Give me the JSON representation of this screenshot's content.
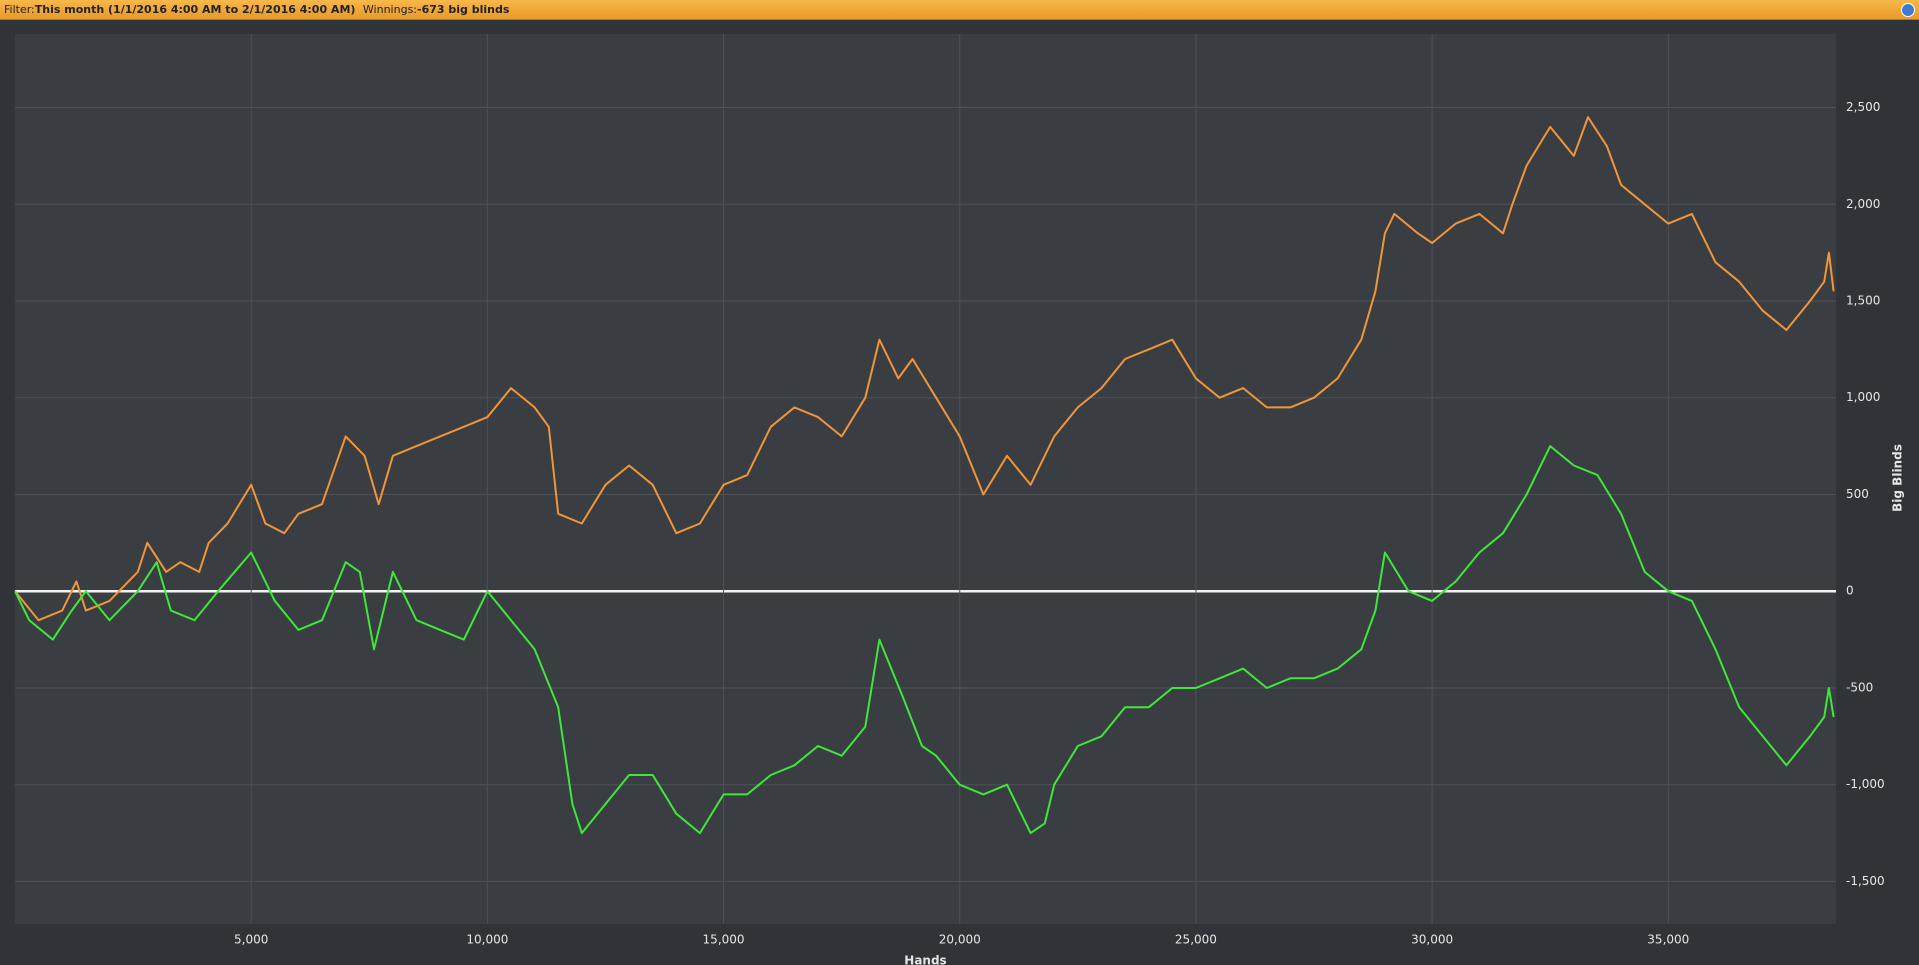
{
  "header": {
    "filter_label": "Filter:",
    "filter": "This month (1/1/2016 4:00 AM to 2/1/2016 4:00 AM)",
    "winnings_label": "Winnings:",
    "winnings": "-673 big blinds"
  },
  "chart_data": {
    "type": "line",
    "xlabel": "Hands",
    "ylabel": "Big Blinds",
    "xlim": [
      0,
      38550
    ],
    "ylim": [
      -1720,
      2880
    ],
    "xticks": [
      {
        "value": 5000,
        "label": "5,000"
      },
      {
        "value": 10000,
        "label": "10,000"
      },
      {
        "value": 15000,
        "label": "15,000"
      },
      {
        "value": 20000,
        "label": "20,000"
      },
      {
        "value": 25000,
        "label": "25,000"
      },
      {
        "value": 30000,
        "label": "30,000"
      },
      {
        "value": 35000,
        "label": "35,000"
      }
    ],
    "yticks": [
      {
        "value": -1500,
        "label": "-1,500"
      },
      {
        "value": -1000,
        "label": "-1,000"
      },
      -500,
      0,
      500,
      {
        "value": 1000,
        "label": "1,000"
      },
      {
        "value": 1500,
        "label": "1,500"
      },
      {
        "value": 2000,
        "label": "2,000"
      },
      {
        "value": 2500,
        "label": "2,500"
      }
    ],
    "grid": true,
    "series": [
      {
        "color": "#f0963a",
        "x": [
          0,
          500,
          1000,
          1300,
          1500,
          2000,
          2600,
          2800,
          3200,
          3500,
          3900,
          4100,
          4500,
          5000,
          5300,
          5700,
          6000,
          6500,
          7000,
          7400,
          7700,
          8000,
          8500,
          9000,
          9500,
          10000,
          10500,
          11000,
          11300,
          11500,
          12000,
          12500,
          13000,
          13500,
          14000,
          14500,
          15000,
          15500,
          16000,
          16500,
          17000,
          17500,
          18000,
          18300,
          18700,
          19000,
          19500,
          20000,
          20500,
          21000,
          21500,
          22000,
          22500,
          23000,
          23500,
          24000,
          24500,
          25000,
          25500,
          26000,
          26500,
          27000,
          27500,
          28000,
          28500,
          28800,
          29000,
          29200,
          29700,
          30000,
          30500,
          31000,
          31500,
          31700,
          32000,
          32500,
          33000,
          33300,
          33700,
          34000,
          34500,
          35000,
          35500,
          36000,
          36500,
          37000,
          37500,
          38000,
          38300,
          38400,
          38500
        ],
        "values": [
          0,
          -150,
          -100,
          50,
          -100,
          -50,
          100,
          250,
          100,
          150,
          100,
          250,
          350,
          550,
          350,
          300,
          400,
          450,
          800,
          700,
          450,
          700,
          750,
          800,
          850,
          900,
          1050,
          950,
          850,
          400,
          350,
          550,
          650,
          550,
          300,
          350,
          550,
          600,
          850,
          950,
          900,
          800,
          1000,
          1300,
          1100,
          1200,
          1000,
          800,
          500,
          700,
          550,
          800,
          950,
          1050,
          1200,
          1250,
          1300,
          1100,
          1000,
          1050,
          950,
          950,
          1000,
          1100,
          1300,
          1550,
          1850,
          1950,
          1850,
          1800,
          1900,
          1950,
          1850,
          2000,
          2200,
          2400,
          2250,
          2450,
          2300,
          2100,
          2000,
          1900,
          1950,
          1700,
          1600,
          1450,
          1350,
          1500,
          1600,
          1750,
          1550
        ]
      },
      {
        "color": "#3ee83a",
        "x": [
          0,
          300,
          800,
          1200,
          1500,
          2000,
          2600,
          3000,
          3300,
          3800,
          4300,
          5000,
          5500,
          6000,
          6500,
          7000,
          7300,
          7600,
          8000,
          8500,
          9000,
          9500,
          10000,
          10500,
          11000,
          11500,
          11800,
          12000,
          12500,
          13000,
          13500,
          14000,
          14500,
          15000,
          15500,
          16000,
          16500,
          17000,
          17500,
          18000,
          18300,
          18800,
          19200,
          19500,
          20000,
          20500,
          21000,
          21500,
          21800,
          22000,
          22500,
          23000,
          23500,
          24000,
          24500,
          25000,
          25500,
          26000,
          26500,
          27000,
          27500,
          28000,
          28500,
          28800,
          29000,
          29500,
          30000,
          30500,
          31000,
          31500,
          32000,
          32500,
          33000,
          33500,
          34000,
          34500,
          35000,
          35500,
          36000,
          36500,
          37000,
          37500,
          38000,
          38300,
          38400,
          38500
        ],
        "values": [
          0,
          -150,
          -250,
          -100,
          0,
          -150,
          0,
          150,
          -100,
          -150,
          0,
          200,
          -50,
          -200,
          -150,
          150,
          100,
          -300,
          100,
          -150,
          -200,
          -250,
          0,
          -150,
          -300,
          -600,
          -1100,
          -1250,
          -1100,
          -950,
          -950,
          -1150,
          -1250,
          -1050,
          -1050,
          -950,
          -900,
          -800,
          -850,
          -700,
          -250,
          -550,
          -800,
          -850,
          -1000,
          -1050,
          -1000,
          -1250,
          -1200,
          -1000,
          -800,
          -750,
          -600,
          -600,
          -500,
          -500,
          -450,
          -400,
          -500,
          -450,
          -450,
          -400,
          -300,
          -100,
          200,
          0,
          -50,
          50,
          200,
          300,
          500,
          750,
          650,
          600,
          400,
          100,
          0,
          -50,
          -300,
          -600,
          -750,
          -900,
          -750,
          -650,
          -500,
          -650
        ]
      }
    ]
  }
}
